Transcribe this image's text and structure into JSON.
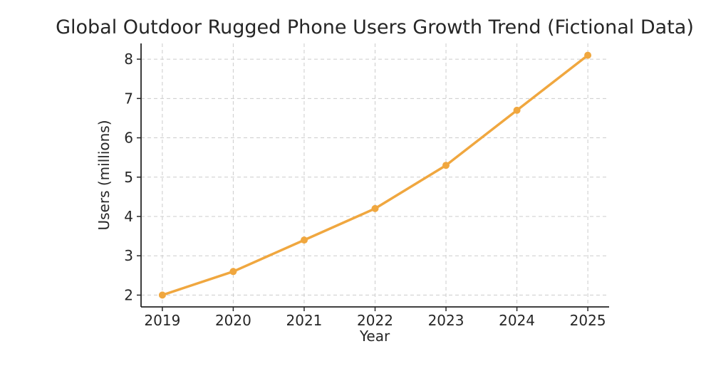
{
  "page": {
    "background_color": "#ffffff"
  },
  "chart_data": {
    "type": "line",
    "title": "Global Outdoor Rugged Phone Users Growth Trend (Fictional Data)",
    "xlabel": "Year",
    "ylabel": "Users (millions)",
    "x": [
      2019,
      2020,
      2021,
      2022,
      2023,
      2024,
      2025
    ],
    "values": [
      2.0,
      2.6,
      3.4,
      4.2,
      5.3,
      6.7,
      8.1
    ],
    "xticks": [
      2019,
      2020,
      2021,
      2022,
      2023,
      2024,
      2025
    ],
    "yticks": [
      2,
      3,
      4,
      5,
      6,
      7,
      8
    ],
    "xlim": [
      2018.7,
      2025.3
    ],
    "ylim": [
      1.7,
      8.4
    ],
    "grid": true,
    "grid_style": "dashed",
    "legend": "none",
    "line_color": "#F0A73F",
    "marker": "circle",
    "marker_color": "#F0A73F",
    "axis_color": "#262626",
    "grid_color": "#cccccc",
    "text_color": "#262626"
  }
}
